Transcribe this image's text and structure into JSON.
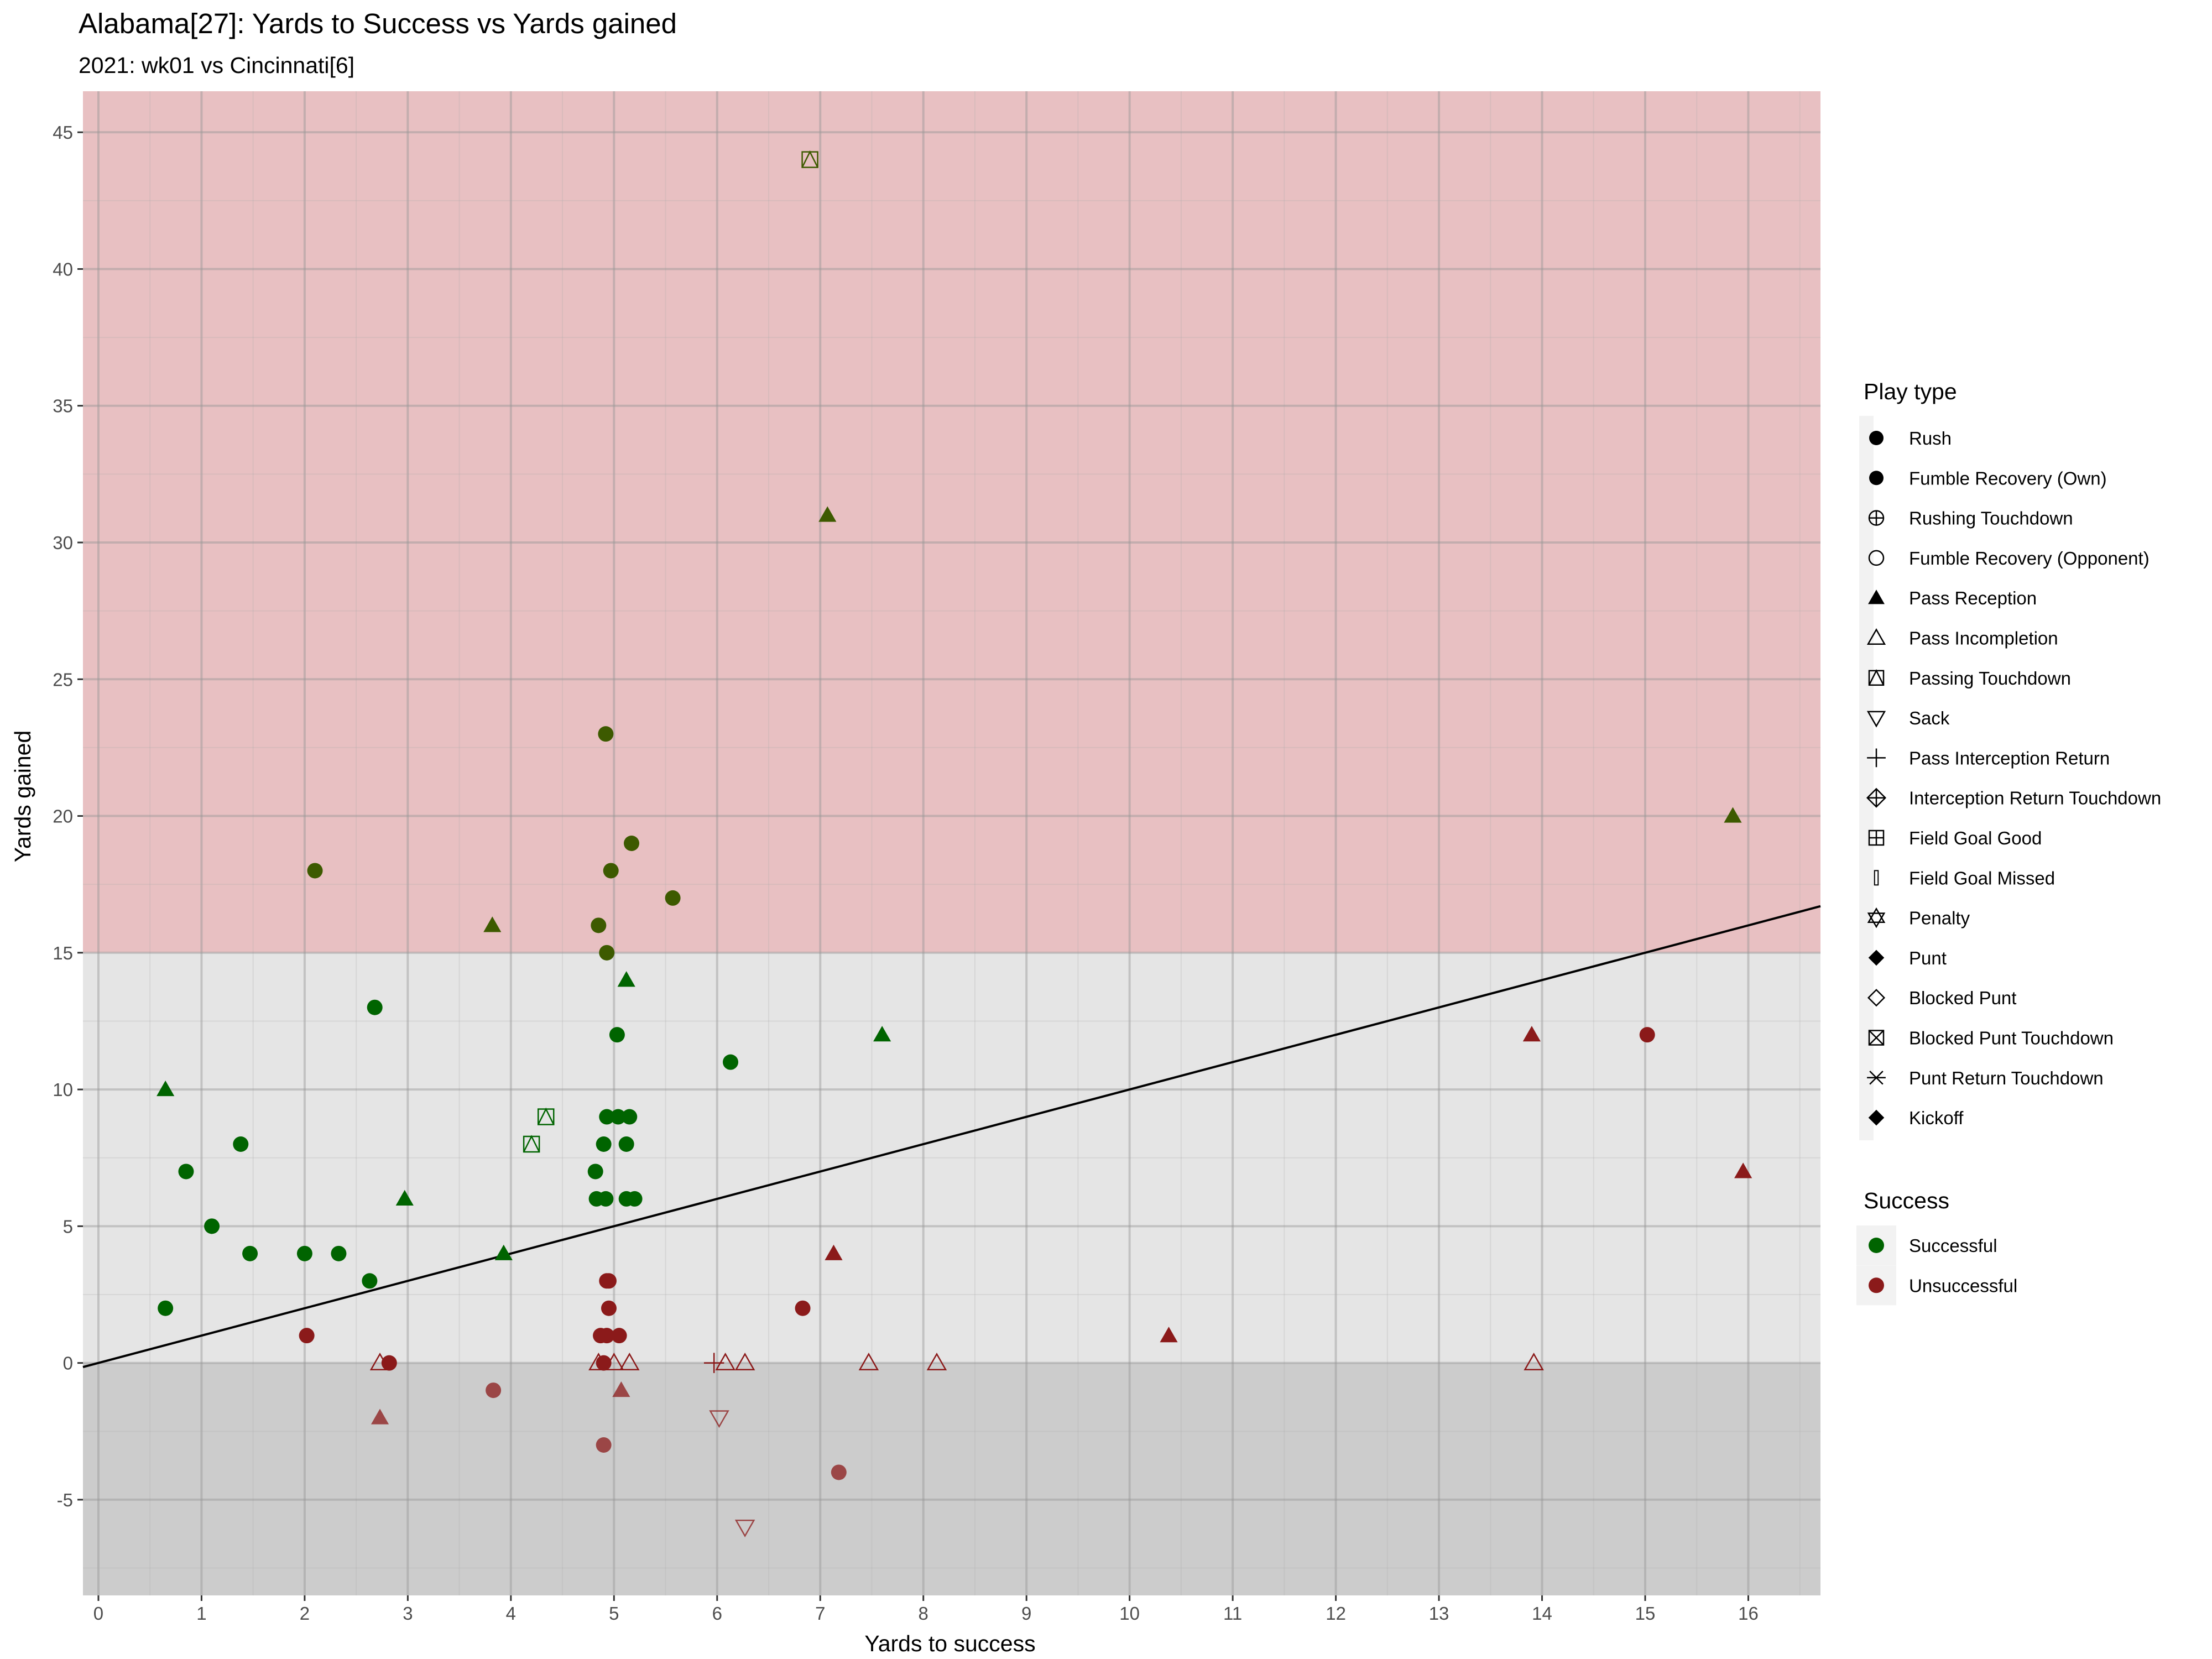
{
  "chart_data": {
    "type": "scatter",
    "title": "Alabama[27]: Yards to Success vs Yards gained",
    "subtitle": "2021: wk01 vs Cincinnati[6]",
    "xlabel": "Yards to success",
    "ylabel": "Yards gained",
    "xlim": [
      -0.15,
      16.7
    ],
    "ylim": [
      -8.5,
      46.5
    ],
    "x_ticks": [
      0,
      1,
      2,
      3,
      4,
      5,
      6,
      7,
      8,
      9,
      10,
      11,
      12,
      13,
      14,
      15,
      16
    ],
    "y_ticks": [
      -5,
      0,
      5,
      10,
      15,
      20,
      25,
      30,
      35,
      40,
      45
    ],
    "grid": true,
    "reference_line": {
      "intercept": 0,
      "slope": 1
    },
    "bands": [
      {
        "from": 15,
        "to": 46.5,
        "color": "#e8c0c2"
      },
      {
        "from": 0,
        "to": 15,
        "color": "#e5e5e5"
      },
      {
        "from": -8.5,
        "to": 0,
        "color": "#cccccc"
      }
    ],
    "colors": {
      "Successful": "#006400",
      "Unsuccessful": "#8b1a1a",
      "Big play": "#3d5a00"
    },
    "legend_play_type": {
      "title": "Play type",
      "placement": "right",
      "items": [
        {
          "label": "Rush",
          "shape": "circle-filled"
        },
        {
          "label": "Fumble Recovery (Own)",
          "shape": "circle-filled"
        },
        {
          "label": "Rushing Touchdown",
          "shape": "circle-plus"
        },
        {
          "label": "Fumble Recovery (Opponent)",
          "shape": "circle-open"
        },
        {
          "label": "Pass Reception",
          "shape": "triangle-filled"
        },
        {
          "label": "Pass Incompletion",
          "shape": "triangle-open"
        },
        {
          "label": "Passing Touchdown",
          "shape": "square-triangle"
        },
        {
          "label": "Sack",
          "shape": "triangle-down-open"
        },
        {
          "label": "Pass Interception Return",
          "shape": "plus"
        },
        {
          "label": "Interception Return Touchdown",
          "shape": "diamond-plus"
        },
        {
          "label": "Field Goal Good",
          "shape": "square-plus"
        },
        {
          "label": "Field Goal Missed",
          "shape": "bar"
        },
        {
          "label": "Penalty",
          "shape": "star-of-david"
        },
        {
          "label": "Punt",
          "shape": "diamond-filled"
        },
        {
          "label": "Blocked Punt",
          "shape": "diamond-open"
        },
        {
          "label": "Blocked Punt Touchdown",
          "shape": "square-x"
        },
        {
          "label": "Punt Return Touchdown",
          "shape": "asterisk"
        },
        {
          "label": "Kickoff",
          "shape": "diamond-filled"
        }
      ]
    },
    "legend_success": {
      "title": "Success",
      "placement": "right",
      "items": [
        {
          "label": "Successful",
          "color": "#006400"
        },
        {
          "label": "Unsuccessful",
          "color": "#8b1a1a"
        }
      ]
    },
    "points": [
      {
        "x": 6.9,
        "y": 44,
        "play": "Passing Touchdown",
        "success": "Successful"
      },
      {
        "x": 7.07,
        "y": 31,
        "play": "Pass Reception",
        "success": "Successful"
      },
      {
        "x": 4.92,
        "y": 23,
        "play": "Rush",
        "success": "Successful"
      },
      {
        "x": 15.85,
        "y": 20,
        "play": "Pass Reception",
        "success": "Successful"
      },
      {
        "x": 5.17,
        "y": 19,
        "play": "Rush",
        "success": "Successful"
      },
      {
        "x": 2.1,
        "y": 18,
        "play": "Rush",
        "success": "Successful"
      },
      {
        "x": 4.97,
        "y": 18,
        "play": "Rush",
        "success": "Successful"
      },
      {
        "x": 5.57,
        "y": 17,
        "play": "Rush",
        "success": "Successful"
      },
      {
        "x": 3.82,
        "y": 16,
        "play": "Pass Reception",
        "success": "Successful"
      },
      {
        "x": 4.85,
        "y": 16,
        "play": "Rush",
        "success": "Successful"
      },
      {
        "x": 4.93,
        "y": 15,
        "play": "Rush",
        "success": "Successful"
      },
      {
        "x": 5.12,
        "y": 14,
        "play": "Pass Reception",
        "success": "Successful"
      },
      {
        "x": 2.68,
        "y": 13,
        "play": "Rush",
        "success": "Successful"
      },
      {
        "x": 5.03,
        "y": 12,
        "play": "Rush",
        "success": "Successful"
      },
      {
        "x": 7.6,
        "y": 12,
        "play": "Pass Reception",
        "success": "Successful"
      },
      {
        "x": 6.13,
        "y": 11,
        "play": "Rush",
        "success": "Successful"
      },
      {
        "x": 0.65,
        "y": 10,
        "play": "Pass Reception",
        "success": "Successful"
      },
      {
        "x": 4.93,
        "y": 9,
        "play": "Rush",
        "success": "Successful"
      },
      {
        "x": 5.04,
        "y": 9,
        "play": "Rush",
        "success": "Successful"
      },
      {
        "x": 5.15,
        "y": 9,
        "play": "Rush",
        "success": "Successful"
      },
      {
        "x": 4.34,
        "y": 9,
        "play": "Passing Touchdown",
        "success": "Successful"
      },
      {
        "x": 1.38,
        "y": 8,
        "play": "Rush",
        "success": "Successful"
      },
      {
        "x": 4.2,
        "y": 8,
        "play": "Passing Touchdown",
        "success": "Successful"
      },
      {
        "x": 4.9,
        "y": 8,
        "play": "Rush",
        "success": "Successful"
      },
      {
        "x": 5.12,
        "y": 8,
        "play": "Rush",
        "success": "Successful"
      },
      {
        "x": 0.85,
        "y": 7,
        "play": "Rush",
        "success": "Successful"
      },
      {
        "x": 4.82,
        "y": 7,
        "play": "Rush",
        "success": "Successful"
      },
      {
        "x": 2.97,
        "y": 6,
        "play": "Pass Reception",
        "success": "Successful"
      },
      {
        "x": 4.83,
        "y": 6,
        "play": "Rush",
        "success": "Successful"
      },
      {
        "x": 4.92,
        "y": 6,
        "play": "Rush",
        "success": "Successful"
      },
      {
        "x": 5.12,
        "y": 6,
        "play": "Rush",
        "success": "Successful"
      },
      {
        "x": 5.2,
        "y": 6,
        "play": "Rush",
        "success": "Successful"
      },
      {
        "x": 1.1,
        "y": 5,
        "play": "Rush",
        "success": "Successful"
      },
      {
        "x": 1.47,
        "y": 4,
        "play": "Rush",
        "success": "Successful"
      },
      {
        "x": 2.0,
        "y": 4,
        "play": "Rush",
        "success": "Successful"
      },
      {
        "x": 2.33,
        "y": 4,
        "play": "Rush",
        "success": "Successful"
      },
      {
        "x": 3.93,
        "y": 4,
        "play": "Pass Reception",
        "success": "Successful"
      },
      {
        "x": 2.63,
        "y": 3,
        "play": "Rush",
        "success": "Successful"
      },
      {
        "x": 0.65,
        "y": 2,
        "play": "Rush",
        "success": "Successful"
      },
      {
        "x": 13.9,
        "y": 12,
        "play": "Pass Reception",
        "success": "Unsuccessful"
      },
      {
        "x": 15.02,
        "y": 12,
        "play": "Rush",
        "success": "Unsuccessful"
      },
      {
        "x": 15.95,
        "y": 7,
        "play": "Pass Reception",
        "success": "Unsuccessful"
      },
      {
        "x": 7.13,
        "y": 4,
        "play": "Pass Reception",
        "success": "Unsuccessful"
      },
      {
        "x": 4.93,
        "y": 3,
        "play": "Rush",
        "success": "Unsuccessful"
      },
      {
        "x": 4.95,
        "y": 3,
        "play": "Rush",
        "success": "Unsuccessful"
      },
      {
        "x": 4.95,
        "y": 2,
        "play": "Rush",
        "success": "Unsuccessful"
      },
      {
        "x": 6.83,
        "y": 2,
        "play": "Rush",
        "success": "Unsuccessful"
      },
      {
        "x": 2.02,
        "y": 1,
        "play": "Rush",
        "success": "Unsuccessful"
      },
      {
        "x": 4.87,
        "y": 1,
        "play": "Rush",
        "success": "Unsuccessful"
      },
      {
        "x": 4.93,
        "y": 1,
        "play": "Rush",
        "success": "Unsuccessful"
      },
      {
        "x": 5.05,
        "y": 1,
        "play": "Rush",
        "success": "Unsuccessful"
      },
      {
        "x": 10.38,
        "y": 1,
        "play": "Pass Reception",
        "success": "Unsuccessful"
      },
      {
        "x": 2.73,
        "y": 0,
        "play": "Pass Incompletion",
        "success": "Unsuccessful"
      },
      {
        "x": 2.82,
        "y": 0,
        "play": "Rush",
        "success": "Unsuccessful"
      },
      {
        "x": 4.85,
        "y": 0,
        "play": "Pass Incompletion",
        "success": "Unsuccessful"
      },
      {
        "x": 4.9,
        "y": 0,
        "play": "Rush",
        "success": "Unsuccessful"
      },
      {
        "x": 5.0,
        "y": 0,
        "play": "Pass Incompletion",
        "success": "Unsuccessful"
      },
      {
        "x": 5.15,
        "y": 0,
        "play": "Pass Incompletion",
        "success": "Unsuccessful"
      },
      {
        "x": 5.97,
        "y": 0,
        "play": "Pass Interception Return",
        "success": "Unsuccessful"
      },
      {
        "x": 6.08,
        "y": 0,
        "play": "Pass Incompletion",
        "success": "Unsuccessful"
      },
      {
        "x": 6.27,
        "y": 0,
        "play": "Pass Incompletion",
        "success": "Unsuccessful"
      },
      {
        "x": 7.47,
        "y": 0,
        "play": "Pass Incompletion",
        "success": "Unsuccessful"
      },
      {
        "x": 8.13,
        "y": 0,
        "play": "Pass Incompletion",
        "success": "Unsuccessful"
      },
      {
        "x": 13.92,
        "y": 0,
        "play": "Pass Incompletion",
        "success": "Unsuccessful"
      },
      {
        "x": 3.83,
        "y": -1,
        "play": "Rush",
        "success": "Unsuccessful"
      },
      {
        "x": 5.07,
        "y": -1,
        "play": "Pass Reception",
        "success": "Unsuccessful"
      },
      {
        "x": 2.73,
        "y": -2,
        "play": "Pass Reception",
        "success": "Unsuccessful"
      },
      {
        "x": 6.02,
        "y": -2,
        "play": "Sack",
        "success": "Unsuccessful"
      },
      {
        "x": 4.9,
        "y": -3,
        "play": "Rush",
        "success": "Unsuccessful"
      },
      {
        "x": 7.18,
        "y": -4,
        "play": "Rush",
        "success": "Unsuccessful"
      },
      {
        "x": 6.27,
        "y": -6,
        "play": "Sack",
        "success": "Unsuccessful"
      }
    ]
  }
}
